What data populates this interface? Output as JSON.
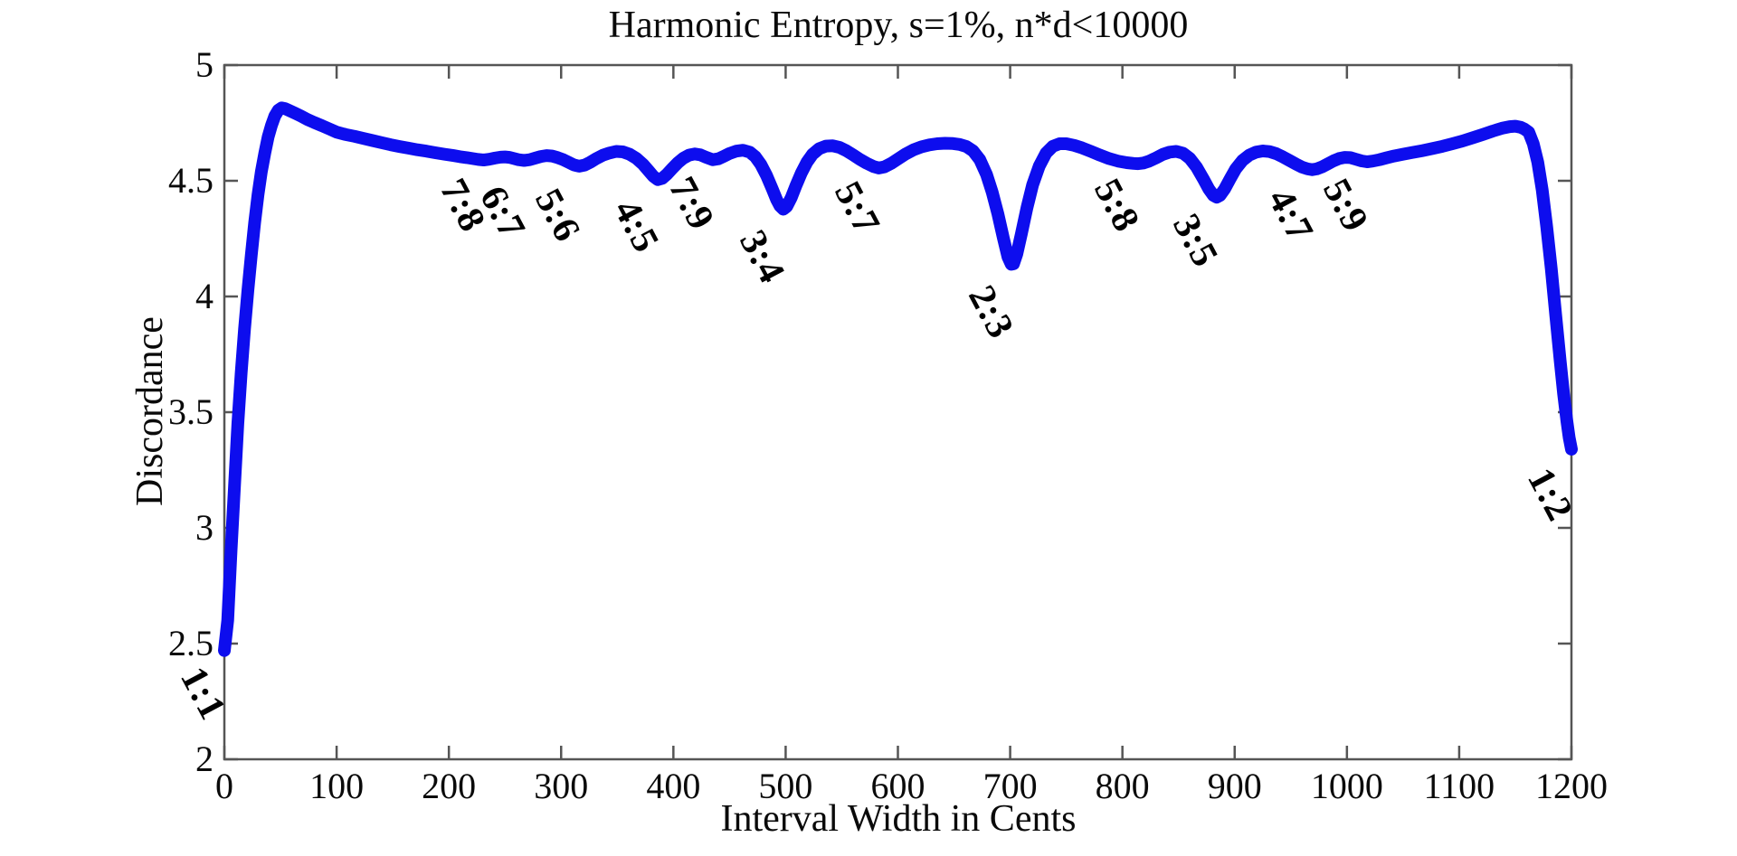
{
  "chart_data": {
    "type": "line",
    "title": "Harmonic Entropy, s=1%, n*d<10000",
    "xlabel": "Interval Width in Cents",
    "ylabel": "Discordance",
    "xlim": [
      0,
      1200
    ],
    "ylim": [
      2,
      5
    ],
    "xticks": [
      "0",
      "100",
      "200",
      "300",
      "400",
      "500",
      "600",
      "700",
      "800",
      "900",
      "1000",
      "1100",
      "1200"
    ],
    "yticks": [
      "2",
      "2.5",
      "3",
      "3.5",
      "4",
      "4.5",
      "5"
    ],
    "grid": false,
    "legend": "none",
    "box": "on",
    "line_color": "#0d0dee",
    "axis_color": "#555555",
    "text_color": "#0a0a0a",
    "background": "#ffffff",
    "series": [
      {
        "name": "harmonic-entropy-curve",
        "points": [
          [
            0,
            2.47
          ],
          [
            3,
            2.6
          ],
          [
            6,
            2.9
          ],
          [
            9,
            3.18
          ],
          [
            12,
            3.45
          ],
          [
            15,
            3.67
          ],
          [
            18,
            3.86
          ],
          [
            21,
            4.03
          ],
          [
            24,
            4.18
          ],
          [
            27,
            4.32
          ],
          [
            30,
            4.44
          ],
          [
            33,
            4.54
          ],
          [
            36,
            4.62
          ],
          [
            39,
            4.69
          ],
          [
            42,
            4.74
          ],
          [
            45,
            4.78
          ],
          [
            48,
            4.805
          ],
          [
            51,
            4.815
          ],
          [
            54,
            4.812
          ],
          [
            58,
            4.803
          ],
          [
            63,
            4.792
          ],
          [
            68,
            4.78
          ],
          [
            74,
            4.765
          ],
          [
            80,
            4.752
          ],
          [
            87,
            4.738
          ],
          [
            94,
            4.723
          ],
          [
            100,
            4.71
          ],
          [
            108,
            4.7
          ],
          [
            116,
            4.692
          ],
          [
            124,
            4.683
          ],
          [
            132,
            4.674
          ],
          [
            140,
            4.665
          ],
          [
            148,
            4.656
          ],
          [
            156,
            4.648
          ],
          [
            164,
            4.641
          ],
          [
            172,
            4.634
          ],
          [
            180,
            4.628
          ],
          [
            188,
            4.621
          ],
          [
            196,
            4.615
          ],
          [
            204,
            4.609
          ],
          [
            210,
            4.604
          ],
          [
            216,
            4.6
          ],
          [
            221,
            4.596
          ],
          [
            226,
            4.592
          ],
          [
            231,
            4.59
          ],
          [
            236,
            4.593
          ],
          [
            241,
            4.598
          ],
          [
            246,
            4.602
          ],
          [
            250,
            4.603
          ],
          [
            254,
            4.601
          ],
          [
            258,
            4.596
          ],
          [
            262,
            4.591
          ],
          [
            267,
            4.588
          ],
          [
            272,
            4.591
          ],
          [
            277,
            4.598
          ],
          [
            282,
            4.605
          ],
          [
            287,
            4.609
          ],
          [
            292,
            4.607
          ],
          [
            297,
            4.6
          ],
          [
            302,
            4.591
          ],
          [
            307,
            4.579
          ],
          [
            311,
            4.569
          ],
          [
            316,
            4.563
          ],
          [
            321,
            4.568
          ],
          [
            326,
            4.58
          ],
          [
            331,
            4.595
          ],
          [
            337,
            4.61
          ],
          [
            343,
            4.62
          ],
          [
            349,
            4.627
          ],
          [
            355,
            4.625
          ],
          [
            361,
            4.615
          ],
          [
            367,
            4.597
          ],
          [
            373,
            4.571
          ],
          [
            378,
            4.543
          ],
          [
            382,
            4.52
          ],
          [
            386,
            4.505
          ],
          [
            390,
            4.51
          ],
          [
            394,
            4.527
          ],
          [
            399,
            4.553
          ],
          [
            404,
            4.578
          ],
          [
            409,
            4.598
          ],
          [
            414,
            4.611
          ],
          [
            419,
            4.616
          ],
          [
            424,
            4.612
          ],
          [
            429,
            4.602
          ],
          [
            435,
            4.591
          ],
          [
            440,
            4.595
          ],
          [
            445,
            4.606
          ],
          [
            450,
            4.618
          ],
          [
            456,
            4.628
          ],
          [
            462,
            4.632
          ],
          [
            468,
            4.624
          ],
          [
            473,
            4.604
          ],
          [
            478,
            4.57
          ],
          [
            483,
            4.523
          ],
          [
            488,
            4.466
          ],
          [
            492,
            4.418
          ],
          [
            495,
            4.391
          ],
          [
            498,
            4.377
          ],
          [
            501,
            4.389
          ],
          [
            505,
            4.427
          ],
          [
            509,
            4.477
          ],
          [
            514,
            4.534
          ],
          [
            519,
            4.581
          ],
          [
            524,
            4.615
          ],
          [
            530,
            4.639
          ],
          [
            536,
            4.65
          ],
          [
            542,
            4.651
          ],
          [
            548,
            4.644
          ],
          [
            554,
            4.63
          ],
          [
            560,
            4.612
          ],
          [
            566,
            4.593
          ],
          [
            572,
            4.576
          ],
          [
            578,
            4.562
          ],
          [
            583,
            4.555
          ],
          [
            588,
            4.56
          ],
          [
            594,
            4.575
          ],
          [
            600,
            4.594
          ],
          [
            607,
            4.616
          ],
          [
            614,
            4.634
          ],
          [
            621,
            4.647
          ],
          [
            628,
            4.655
          ],
          [
            635,
            4.66
          ],
          [
            642,
            4.662
          ],
          [
            649,
            4.661
          ],
          [
            655,
            4.657
          ],
          [
            661,
            4.648
          ],
          [
            667,
            4.629
          ],
          [
            673,
            4.591
          ],
          [
            679,
            4.527
          ],
          [
            684,
            4.451
          ],
          [
            689,
            4.359
          ],
          [
            694,
            4.252
          ],
          [
            698,
            4.171
          ],
          [
            701,
            4.139
          ],
          [
            703,
            4.141
          ],
          [
            706,
            4.184
          ],
          [
            710,
            4.271
          ],
          [
            715,
            4.384
          ],
          [
            720,
            4.482
          ],
          [
            726,
            4.564
          ],
          [
            732,
            4.62
          ],
          [
            738,
            4.649
          ],
          [
            744,
            4.66
          ],
          [
            750,
            4.66
          ],
          [
            757,
            4.653
          ],
          [
            764,
            4.642
          ],
          [
            772,
            4.627
          ],
          [
            780,
            4.611
          ],
          [
            788,
            4.596
          ],
          [
            796,
            4.585
          ],
          [
            804,
            4.578
          ],
          [
            810,
            4.575
          ],
          [
            814,
            4.574
          ],
          [
            819,
            4.577
          ],
          [
            824,
            4.585
          ],
          [
            830,
            4.599
          ],
          [
            836,
            4.614
          ],
          [
            842,
            4.624
          ],
          [
            848,
            4.627
          ],
          [
            854,
            4.619
          ],
          [
            860,
            4.597
          ],
          [
            866,
            4.559
          ],
          [
            872,
            4.509
          ],
          [
            877,
            4.464
          ],
          [
            881,
            4.437
          ],
          [
            884,
            4.429
          ],
          [
            887,
            4.437
          ],
          [
            891,
            4.464
          ],
          [
            896,
            4.509
          ],
          [
            901,
            4.552
          ],
          [
            907,
            4.588
          ],
          [
            913,
            4.611
          ],
          [
            919,
            4.624
          ],
          [
            925,
            4.629
          ],
          [
            931,
            4.626
          ],
          [
            937,
            4.617
          ],
          [
            943,
            4.603
          ],
          [
            949,
            4.587
          ],
          [
            955,
            4.571
          ],
          [
            960,
            4.559
          ],
          [
            965,
            4.551
          ],
          [
            969,
            4.548
          ],
          [
            973,
            4.551
          ],
          [
            978,
            4.56
          ],
          [
            983,
            4.573
          ],
          [
            988,
            4.586
          ],
          [
            993,
            4.596
          ],
          [
            998,
            4.601
          ],
          [
            1003,
            4.6
          ],
          [
            1008,
            4.593
          ],
          [
            1013,
            4.586
          ],
          [
            1018,
            4.582
          ],
          [
            1023,
            4.585
          ],
          [
            1029,
            4.591
          ],
          [
            1035,
            4.599
          ],
          [
            1042,
            4.607
          ],
          [
            1050,
            4.615
          ],
          [
            1058,
            4.622
          ],
          [
            1067,
            4.63
          ],
          [
            1076,
            4.639
          ],
          [
            1085,
            4.649
          ],
          [
            1094,
            4.66
          ],
          [
            1103,
            4.672
          ],
          [
            1112,
            4.686
          ],
          [
            1121,
            4.7
          ],
          [
            1130,
            4.715
          ],
          [
            1138,
            4.727
          ],
          [
            1145,
            4.734
          ],
          [
            1150,
            4.736
          ],
          [
            1155,
            4.731
          ],
          [
            1158,
            4.724
          ],
          [
            1162,
            4.71
          ],
          [
            1166,
            4.66
          ],
          [
            1170,
            4.58
          ],
          [
            1174,
            4.46
          ],
          [
            1178,
            4.3
          ],
          [
            1182,
            4.12
          ],
          [
            1186,
            3.92
          ],
          [
            1190,
            3.72
          ],
          [
            1193,
            3.58
          ],
          [
            1196,
            3.46
          ],
          [
            1198,
            3.39
          ],
          [
            1200,
            3.34
          ]
        ]
      }
    ],
    "annotations": [
      {
        "label": "1:1",
        "cents": 0,
        "value": 2.42
      },
      {
        "label": "7:8",
        "cents": 231,
        "value": 4.53
      },
      {
        "label": "6:7",
        "cents": 267,
        "value": 4.5
      },
      {
        "label": "5:6",
        "cents": 316,
        "value": 4.49
      },
      {
        "label": "4:5",
        "cents": 386,
        "value": 4.44
      },
      {
        "label": "7:9",
        "cents": 435,
        "value": 4.54
      },
      {
        "label": "3:4",
        "cents": 498,
        "value": 4.31
      },
      {
        "label": "5:7",
        "cents": 583,
        "value": 4.52
      },
      {
        "label": "2:3",
        "cents": 702,
        "value": 4.07
      },
      {
        "label": "5:8",
        "cents": 814,
        "value": 4.53
      },
      {
        "label": "3:5",
        "cents": 884,
        "value": 4.38
      },
      {
        "label": "4:7",
        "cents": 969,
        "value": 4.49
      },
      {
        "label": "5:9",
        "cents": 1018,
        "value": 4.53
      },
      {
        "label": "1:2",
        "cents": 1200,
        "value": 3.28
      }
    ]
  }
}
